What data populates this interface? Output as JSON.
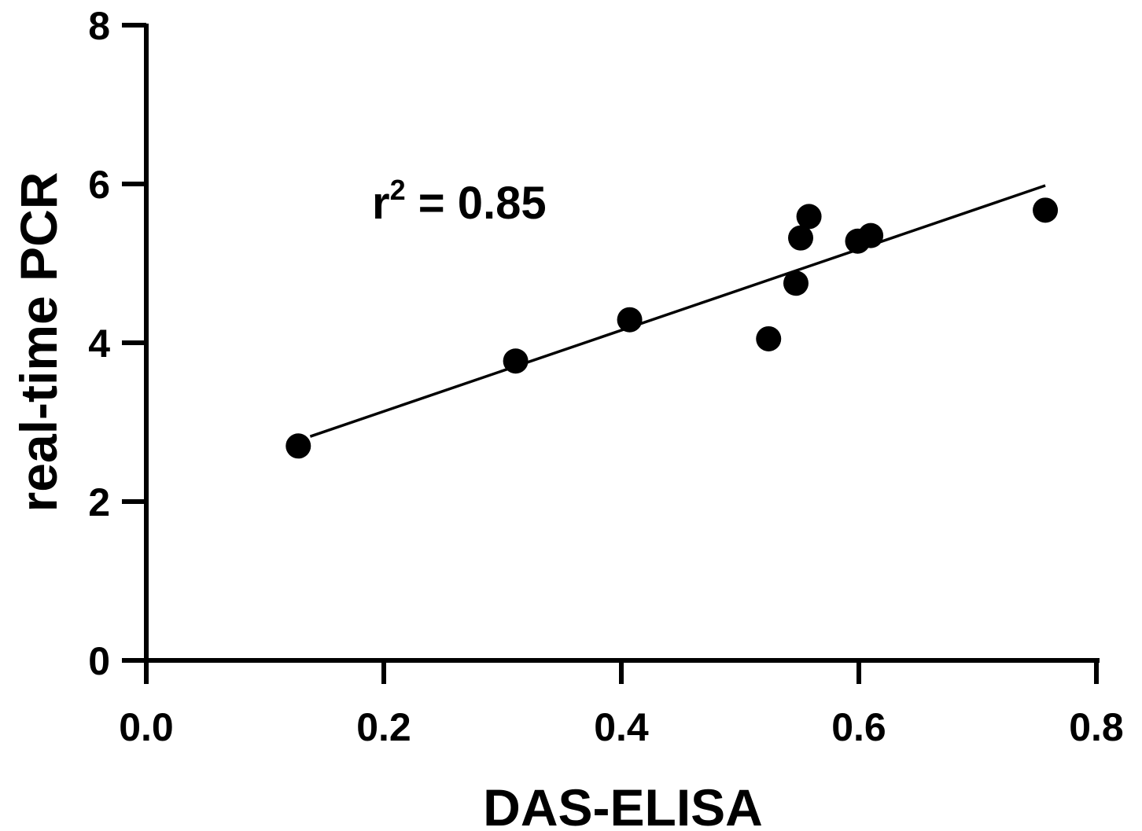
{
  "chart_data": {
    "type": "scatter",
    "title": "",
    "xlabel": "DAS-ELISA",
    "ylabel": "real-time PCR",
    "xlim": [
      0.0,
      0.8
    ],
    "ylim": [
      0,
      8
    ],
    "x_ticks": [
      "0.0",
      "0.2",
      "0.4",
      "0.6",
      "0.8"
    ],
    "y_ticks": [
      "0",
      "2",
      "4",
      "6",
      "8"
    ],
    "grid": false,
    "legend": "none",
    "series": [
      {
        "x": [
          0.128,
          0.311,
          0.407,
          0.524,
          0.547,
          0.551,
          0.558,
          0.599,
          0.61,
          0.757
        ],
        "y": [
          2.7,
          3.77,
          4.29,
          4.05,
          4.75,
          5.32,
          5.59,
          5.28,
          5.35,
          5.67
        ]
      }
    ],
    "trendline": {
      "x": [
        0.138,
        0.757
      ],
      "y": [
        2.82,
        5.98
      ]
    },
    "annotation": {
      "base": "r",
      "sup": "2",
      "rest": " = 0.85"
    },
    "colors": {
      "marker": "#000000",
      "line": "#000000"
    }
  }
}
